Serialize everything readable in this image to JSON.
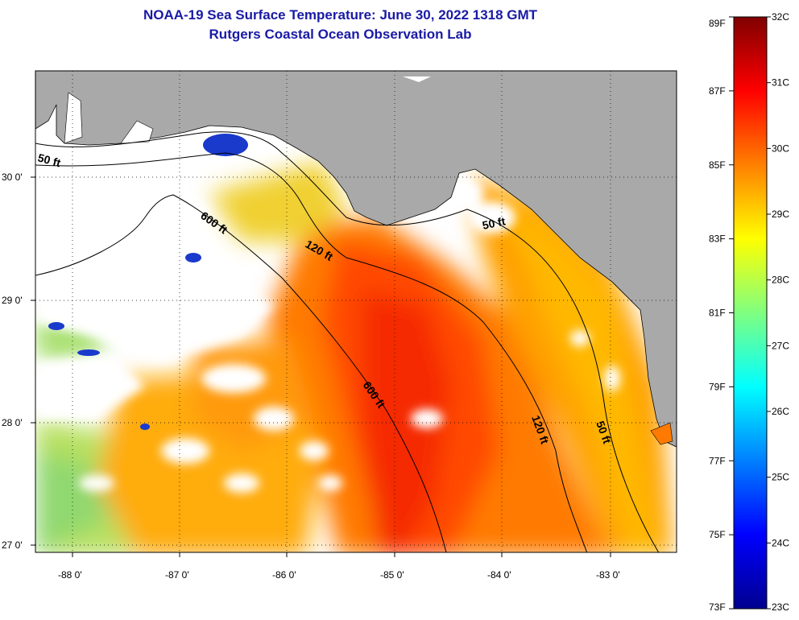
{
  "title": {
    "line1": "NOAA-19 Sea Surface Temperature:  June 30, 2022 1318 GMT",
    "line2": "Rutgers Coastal Ocean Observation Lab"
  },
  "map": {
    "lon_ticks": [
      "-88 0'",
      "-87 0'",
      "-86 0'",
      "-85 0'",
      "-84 0'",
      "-83 0'"
    ],
    "lat_ticks": [
      "30 0'",
      "29 0'",
      "28 0'",
      "27 0'"
    ],
    "contour_labels": [
      "50 ft",
      "600 ft",
      "120 ft",
      "50 ft",
      "600 ft",
      "120 ft",
      "50 ft"
    ],
    "colors": {
      "land": "#a9a9a9",
      "cloud": "#ffffff",
      "contour": "#000000"
    }
  },
  "colorbar": {
    "fahrenheit": [
      "89F",
      "87F",
      "85F",
      "83F",
      "81F",
      "79F",
      "77F",
      "75F",
      "73F"
    ],
    "celsius": [
      "32C",
      "31C",
      "30C",
      "29C",
      "28C",
      "27C",
      "26C",
      "25C",
      "24C",
      "23C"
    ]
  }
}
